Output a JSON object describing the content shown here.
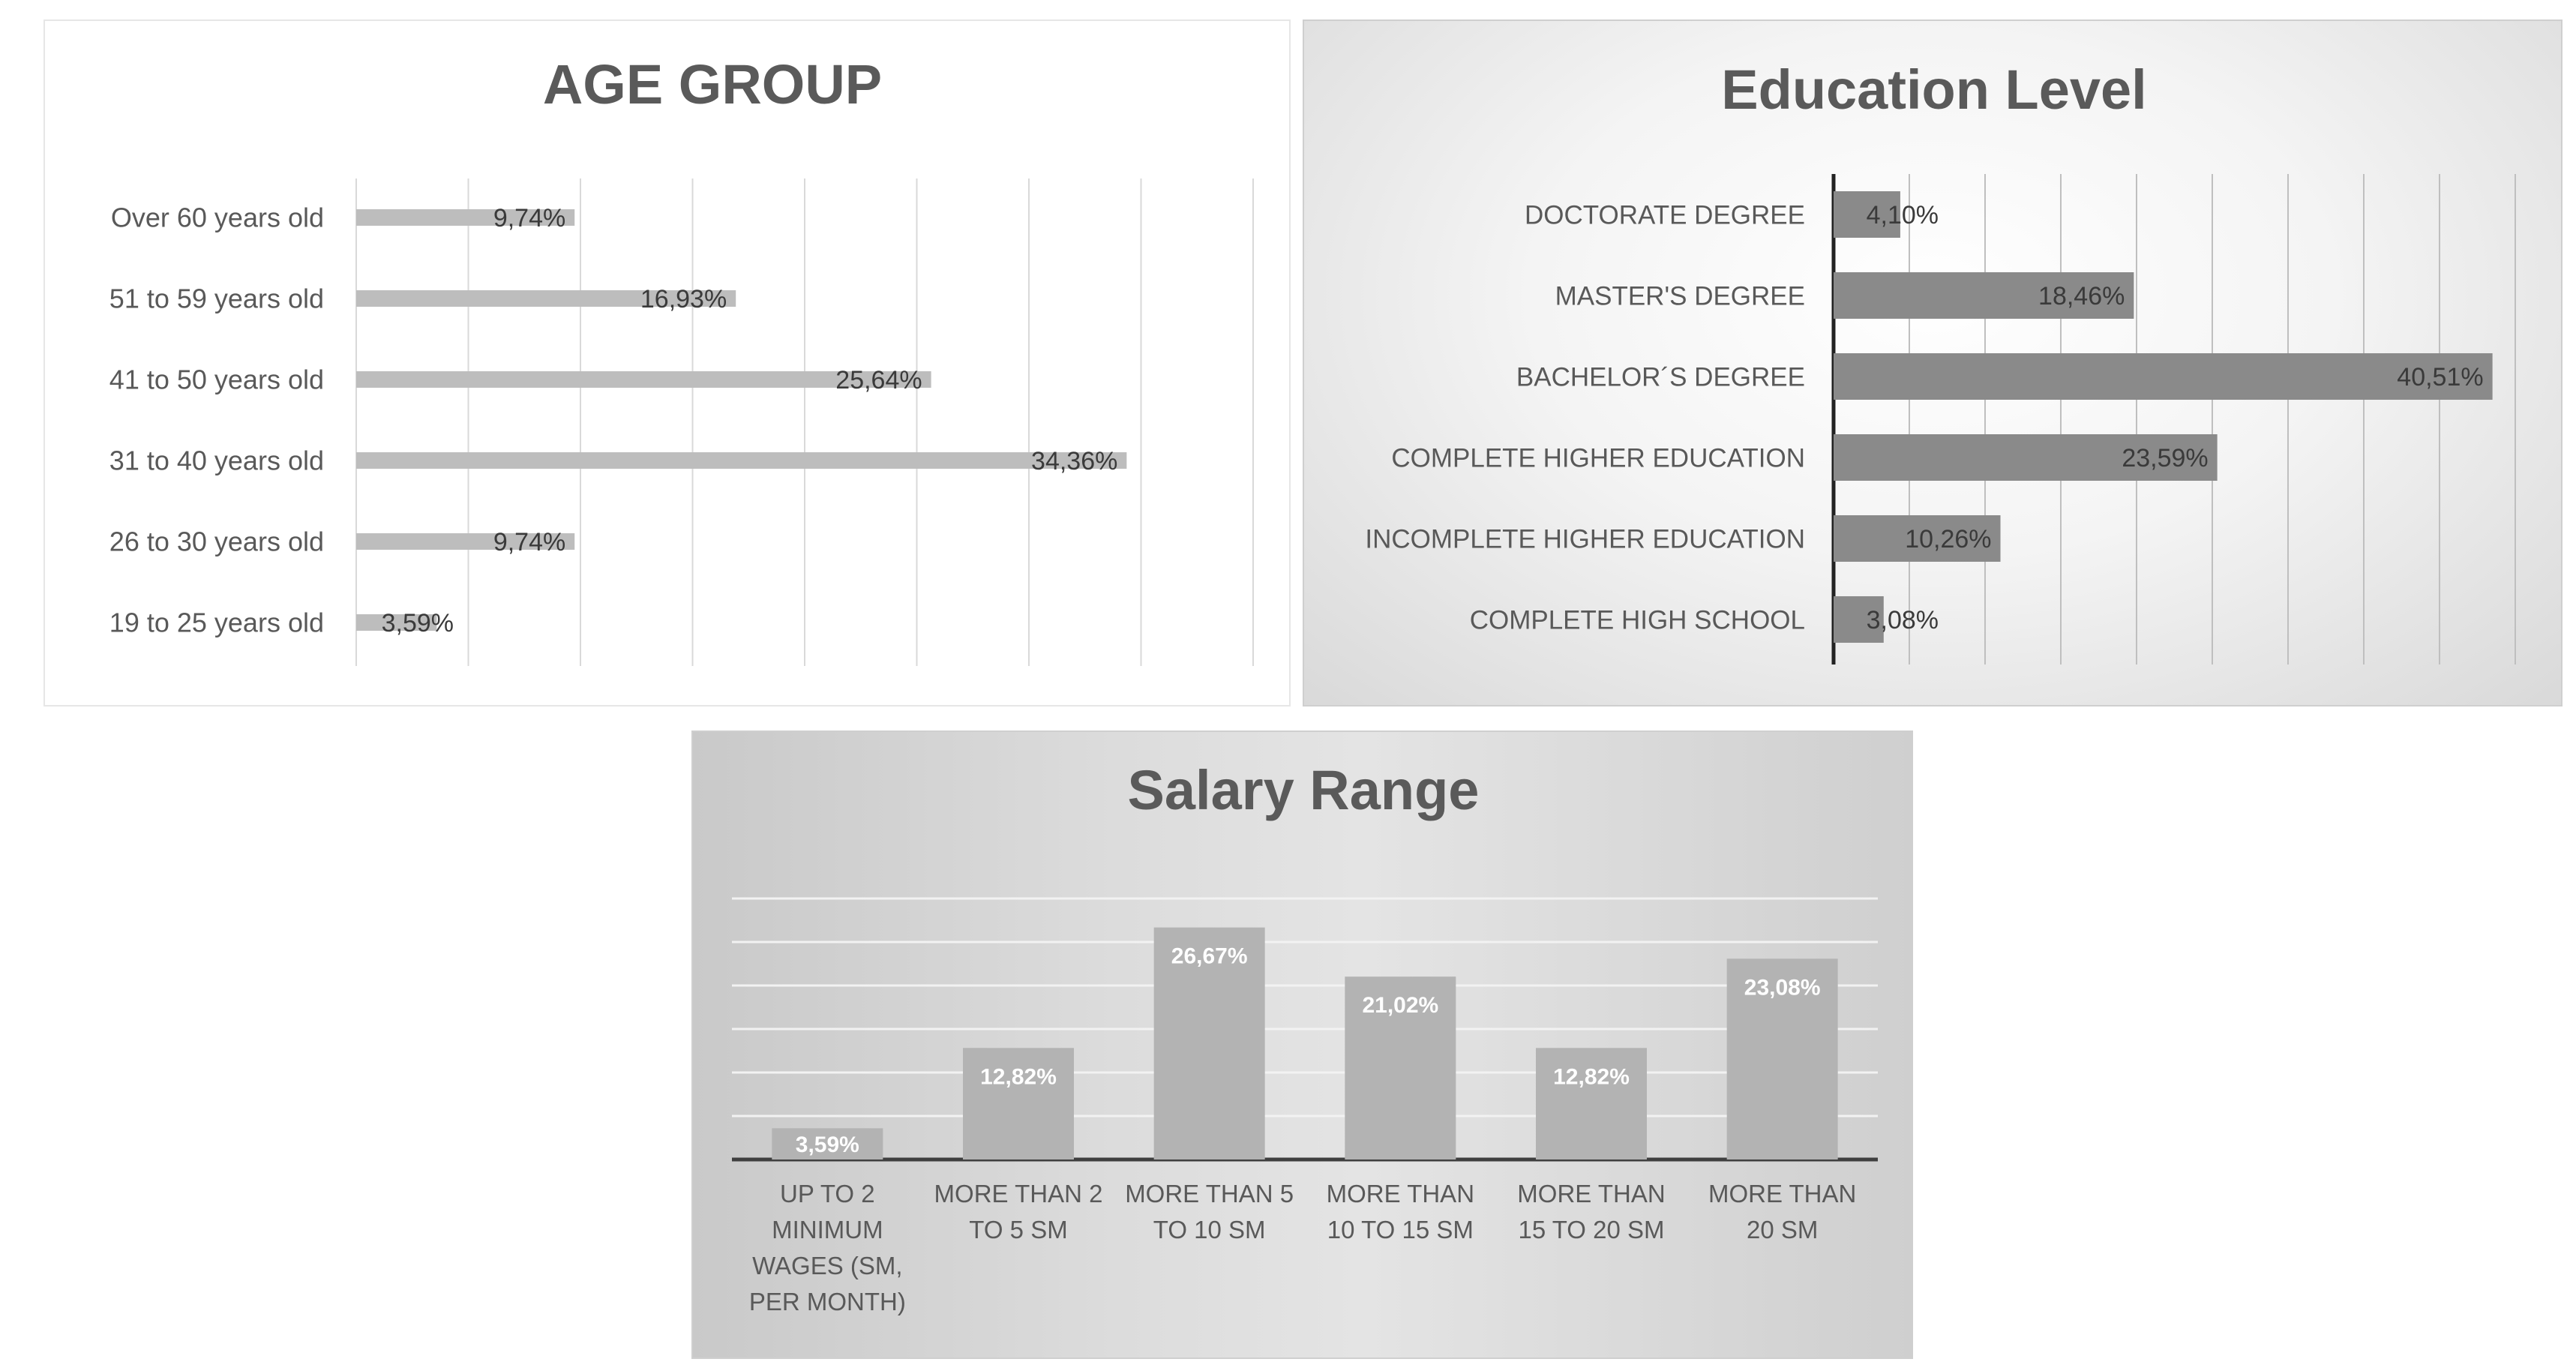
{
  "chart_data": [
    {
      "type": "bar",
      "orientation": "horizontal",
      "title": "AGE GROUP",
      "categories": [
        "Over 60 years old",
        "51 to 59 years old",
        "41 to 50 years old",
        "31 to 40 years old",
        "26 to 30 years old",
        "19 to 25 years old"
      ],
      "values": [
        9.74,
        16.93,
        25.64,
        34.36,
        9.74,
        3.59
      ],
      "value_labels": [
        "9,74%",
        "16,93%",
        "25,64%",
        "34,36%",
        "9,74%",
        "3,59%"
      ],
      "xlim": [
        0,
        40
      ],
      "grid": "vertical",
      "bar_color": "#bdbdbd"
    },
    {
      "type": "bar",
      "orientation": "horizontal",
      "title": "Education Level",
      "categories": [
        "DOCTORATE DEGREE",
        "MASTER'S DEGREE",
        "BACHELOR´S DEGREE",
        "COMPLETE HIGHER EDUCATION",
        "INCOMPLETE HIGHER EDUCATION",
        "COMPLETE HIGH SCHOOL"
      ],
      "values": [
        4.1,
        18.46,
        40.51,
        23.59,
        10.26,
        3.08
      ],
      "value_labels": [
        "4,10%",
        "18,46%",
        "40,51%",
        "23,59%",
        "10,26%",
        "3,08%"
      ],
      "xlim": [
        0,
        45
      ],
      "grid": "vertical",
      "bar_color": "#8a8a8a"
    },
    {
      "type": "bar",
      "orientation": "vertical",
      "title": "Salary Range",
      "categories": [
        [
          "UP TO 2",
          "MINIMUM",
          "WAGES (SM,",
          "PER MONTH)"
        ],
        [
          "MORE THAN 2",
          "TO 5 SM"
        ],
        [
          "MORE THAN 5",
          "TO 10 SM"
        ],
        [
          "MORE THAN",
          "10 TO 15 SM"
        ],
        [
          "MORE THAN",
          "15 TO 20 SM"
        ],
        [
          "MORE THAN",
          "20 SM"
        ]
      ],
      "values": [
        3.59,
        12.82,
        26.67,
        21.02,
        12.82,
        23.08
      ],
      "value_labels": [
        "3,59%",
        "12,82%",
        "26,67%",
        "21,02%",
        "12,82%",
        "23,08%"
      ],
      "ylim": [
        0,
        30
      ],
      "grid": "horizontal",
      "bar_color": "#b3b3b3"
    }
  ]
}
